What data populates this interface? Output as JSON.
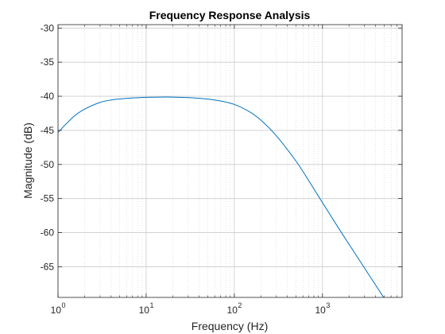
{
  "chart_data": {
    "type": "line",
    "title": "Frequency Response Analysis",
    "xlabel": "Frequency (Hz)",
    "ylabel": "Magnitude (dB)",
    "xscale": "log",
    "xlim": [
      1,
      8000
    ],
    "ylim": [
      -69.5,
      -29.5
    ],
    "xticks": [
      {
        "base": "10",
        "exp": "0",
        "value": 1
      },
      {
        "base": "10",
        "exp": "1",
        "value": 10
      },
      {
        "base": "10",
        "exp": "2",
        "value": 100
      },
      {
        "base": "10",
        "exp": "3",
        "value": 1000
      }
    ],
    "yticks": [
      -30,
      -35,
      -40,
      -45,
      -50,
      -55,
      -60,
      -65
    ],
    "ytick_labels": [
      "-30",
      "-35",
      "-40",
      "-45",
      "-50",
      "-55",
      "-60",
      "-65"
    ],
    "grid": true,
    "minor_grid": true,
    "line_color": "#0072bd",
    "series": [
      {
        "x": [
          1,
          1.5,
          2,
          3,
          4,
          5,
          7,
          10,
          15,
          20,
          30,
          50,
          70,
          100,
          150,
          200,
          300,
          500,
          700,
          1000,
          1500,
          2000,
          3000,
          5000
        ],
        "y": [
          -45.3,
          -43.0,
          -41.9,
          -40.9,
          -40.55,
          -40.4,
          -40.25,
          -40.15,
          -40.12,
          -40.13,
          -40.2,
          -40.42,
          -40.7,
          -41.2,
          -42.3,
          -43.5,
          -45.8,
          -49.5,
          -52.4,
          -55.6,
          -59.2,
          -61.7,
          -65.2,
          -69.6
        ]
      }
    ]
  }
}
